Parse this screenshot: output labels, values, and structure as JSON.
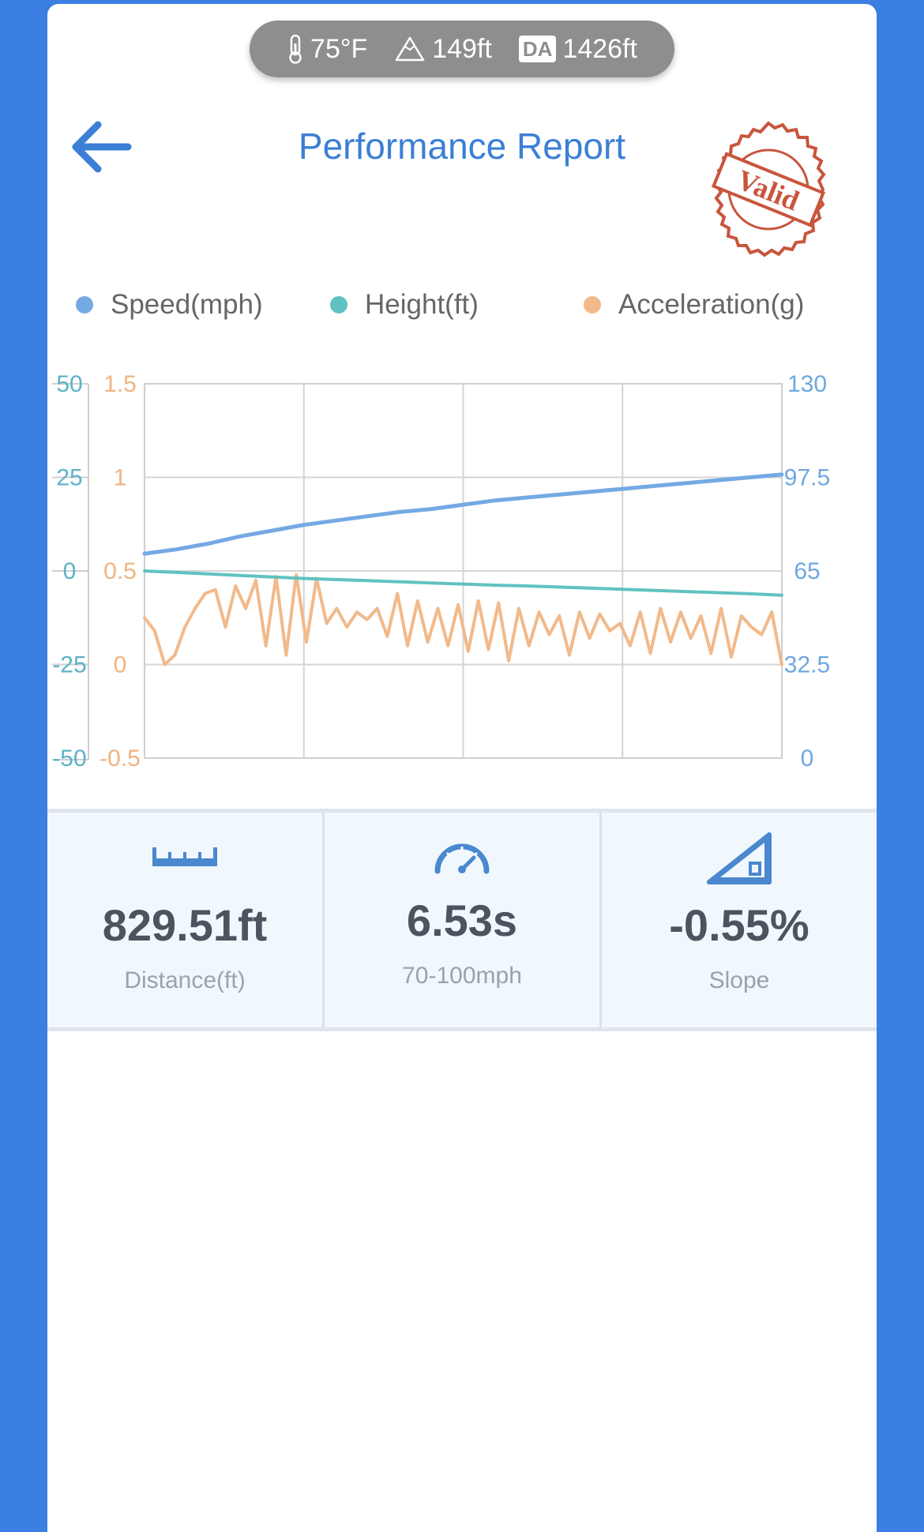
{
  "conditions": {
    "temperature": "75°F",
    "altitude": "149ft",
    "density_altitude_badge": "DA",
    "density_altitude": "1426ft",
    "icons": [
      "thermometer-icon",
      "mountain-icon",
      "da-badge"
    ]
  },
  "header": {
    "back_icon": "back-arrow-icon",
    "title": "Performance Report",
    "stamp_text": "Valid"
  },
  "legend": [
    {
      "label": "Speed(mph)",
      "color": "#74a9e4"
    },
    {
      "label": "Height(ft)",
      "color": "#60c2c0"
    },
    {
      "label": "Acceleration(g)",
      "color": "#f2b98a"
    }
  ],
  "chart_data": {
    "type": "line",
    "axes": {
      "height_ticks": [
        "50",
        "25",
        "0",
        "-25",
        "-50"
      ],
      "accel_ticks": [
        "1.5",
        "1",
        "0.5",
        "0",
        "-0.5"
      ],
      "speed_ticks": [
        "130",
        "97.5",
        "65",
        "32.5",
        "0"
      ],
      "height_range": [
        -50,
        50
      ],
      "accel_range": [
        -0.5,
        1.5
      ],
      "speed_range": [
        0,
        130
      ]
    },
    "grid": true,
    "series": [
      {
        "name": "Speed(mph)",
        "color": "#74a9e4",
        "axis": "right",
        "values": [
          71,
          72.5,
          74.5,
          77,
          79,
          81,
          82.5,
          84,
          85.5,
          86.5,
          88,
          89.5,
          90.5,
          91.5,
          92.5,
          93.5,
          94.5,
          95.5,
          96.5,
          97.5,
          98.5
        ]
      },
      {
        "name": "Height(ft)",
        "color": "#60c2c0",
        "axis": "left",
        "values": [
          0,
          -0.4,
          -0.8,
          -1.2,
          -1.6,
          -2,
          -2.3,
          -2.6,
          -2.9,
          -3.2,
          -3.5,
          -3.8,
          -4,
          -4.3,
          -4.6,
          -4.9,
          -5.2,
          -5.5,
          -5.8,
          -6.1,
          -6.5
        ]
      },
      {
        "name": "Acceleration(g)",
        "color": "#f2b98a",
        "axis": "left-inner",
        "values": [
          0.25,
          0.18,
          0.0,
          0.05,
          0.2,
          0.3,
          0.38,
          0.4,
          0.2,
          0.42,
          0.3,
          0.45,
          0.1,
          0.47,
          0.05,
          0.48,
          0.12,
          0.46,
          0.22,
          0.3,
          0.2,
          0.28,
          0.24,
          0.3,
          0.15,
          0.38,
          0.1,
          0.34,
          0.12,
          0.3,
          0.1,
          0.32,
          0.07,
          0.34,
          0.08,
          0.33,
          0.02,
          0.3,
          0.1,
          0.28,
          0.16,
          0.26,
          0.05,
          0.28,
          0.14,
          0.27,
          0.18,
          0.22,
          0.1,
          0.28,
          0.06,
          0.3,
          0.12,
          0.28,
          0.14,
          0.26,
          0.06,
          0.3,
          0.04,
          0.26,
          0.2,
          0.16,
          0.28,
          0.0
        ]
      }
    ]
  },
  "stats": [
    {
      "icon": "ruler-icon",
      "value": "829.51ft",
      "label": "Distance(ft)"
    },
    {
      "icon": "speedometer-icon",
      "value": "6.53s",
      "label": "70-100mph"
    },
    {
      "icon": "slope-icon",
      "value": "-0.55%",
      "label": "Slope"
    }
  ]
}
